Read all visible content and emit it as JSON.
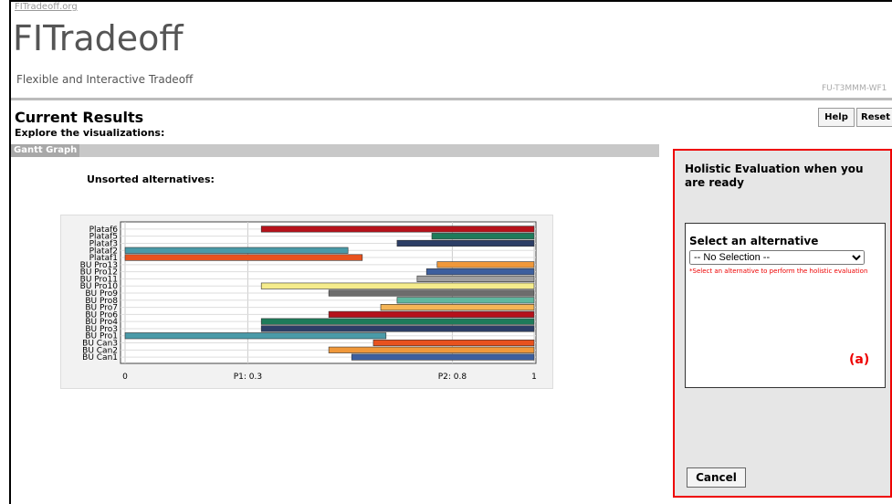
{
  "header": {
    "link": "FITradeoff.org",
    "title": "FITradeoff",
    "subtitle": "Flexible and Interactive Tradeoff",
    "code": "FU-T3MMM-WF1"
  },
  "page": {
    "title": "Current Results",
    "subtitle": "Explore the visualizations:",
    "buttons": [
      "Help",
      "Reset"
    ],
    "tab": "Gantt Graph"
  },
  "gantt": {
    "title": "Unsorted alternatives:",
    "xlim": [
      0,
      1
    ],
    "xticks": [
      0,
      {
        "value": 0.3,
        "label": "P1: 0.3"
      },
      {
        "value": 0.8,
        "label": "P2: 0.8"
      },
      1
    ],
    "bars": [
      {
        "name": "Plataf6",
        "start": 0.333,
        "end": 1,
        "color": "#b5121b"
      },
      {
        "name": "Plataf5",
        "start": 0.75,
        "end": 1,
        "color": "#1e7b5a"
      },
      {
        "name": "Plataf3",
        "start": 0.665,
        "end": 1,
        "color": "#2c3e66"
      },
      {
        "name": "Plataf2",
        "start": 0,
        "end": 0.545,
        "color": "#4a9aa8"
      },
      {
        "name": "Plataf1",
        "start": 0,
        "end": 0.58,
        "color": "#e8521e"
      },
      {
        "name": "BU Pro13",
        "start": 0.763,
        "end": 1,
        "color": "#f0983a"
      },
      {
        "name": "BU Pro12",
        "start": 0.737,
        "end": 1,
        "color": "#3d5f9e"
      },
      {
        "name": "BU Pro11",
        "start": 0.714,
        "end": 1,
        "color": "#a0a0a0"
      },
      {
        "name": "BU Pro10",
        "start": 0.333,
        "end": 1,
        "color": "#f5ec8c"
      },
      {
        "name": "BU Pro9",
        "start": 0.498,
        "end": 1,
        "color": "#6d6d6d"
      },
      {
        "name": "BU Pro8",
        "start": 0.665,
        "end": 1,
        "color": "#5fb8a0"
      },
      {
        "name": "BU Pro7",
        "start": 0.625,
        "end": 1,
        "color": "#f5b556"
      },
      {
        "name": "BU Pro6",
        "start": 0.498,
        "end": 1,
        "color": "#b5121b"
      },
      {
        "name": "BU Pro4",
        "start": 0.333,
        "end": 1,
        "color": "#1e7b5a"
      },
      {
        "name": "BU Pro3",
        "start": 0.333,
        "end": 1,
        "color": "#2c3e66"
      },
      {
        "name": "BU Pro1",
        "start": 0,
        "end": 0.638,
        "color": "#4a9aa8"
      },
      {
        "name": "BU Can3",
        "start": 0.607,
        "end": 1,
        "color": "#e8521e"
      },
      {
        "name": "BU Can2",
        "start": 0.498,
        "end": 1,
        "color": "#f0983a"
      },
      {
        "name": "BU Can1",
        "start": 0.554,
        "end": 1,
        "color": "#3d5f9e"
      }
    ]
  },
  "panel": {
    "title": "Holistic Evaluation when you are ready",
    "label": "Select an alternative",
    "select": "-- No Selection --",
    "hint": "*Select an alternative to perform the holistic evaluation",
    "marker": "(a)",
    "cancel": "Cancel"
  }
}
